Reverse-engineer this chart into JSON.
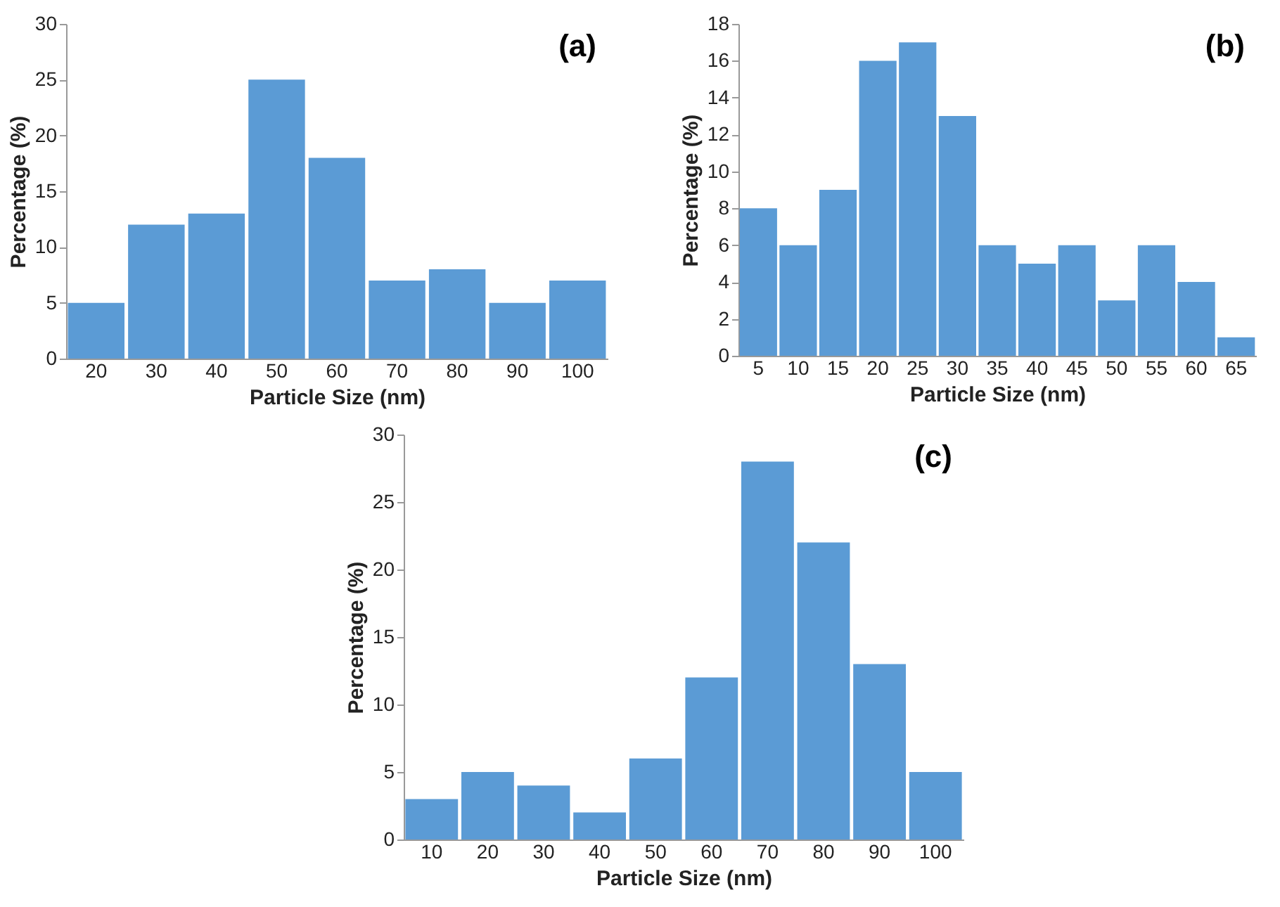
{
  "chart_data": [
    {
      "type": "bar",
      "categories": [
        "20",
        "30",
        "40",
        "50",
        "60",
        "70",
        "80",
        "90",
        "100"
      ],
      "values": [
        5,
        12,
        13,
        25,
        18,
        7,
        8,
        5,
        7
      ],
      "color": "#5b9bd5",
      "xlabel": "Particle Size (nm)",
      "ylabel": "Percentage (%)",
      "ylim": [
        0,
        30
      ],
      "yticks": [
        0,
        5,
        10,
        15,
        20,
        25,
        30
      ],
      "annotations": [
        "(a)"
      ]
    },
    {
      "type": "bar",
      "categories": [
        "5",
        "10",
        "15",
        "20",
        "25",
        "30",
        "35",
        "40",
        "45",
        "50",
        "55",
        "60",
        "65"
      ],
      "values": [
        8,
        6,
        9,
        16,
        17,
        13,
        6,
        5,
        6,
        3,
        6,
        4,
        1
      ],
      "color": "#5b9bd5",
      "xlabel": "Particle Size (nm)",
      "ylabel": "Percentage (%)",
      "ylim": [
        0,
        18
      ],
      "yticks": [
        0,
        2,
        4,
        6,
        8,
        10,
        12,
        14,
        16,
        18
      ],
      "annotations": [
        "(b)"
      ]
    },
    {
      "type": "bar",
      "categories": [
        "10",
        "20",
        "30",
        "40",
        "50",
        "60",
        "70",
        "80",
        "90",
        "100"
      ],
      "values": [
        3,
        5,
        4,
        2,
        6,
        12,
        28,
        22,
        13,
        5
      ],
      "color": "#5b9bd5",
      "xlabel": "Particle Size (nm)",
      "ylabel": "Percentage (%)",
      "ylim": [
        0,
        30
      ],
      "yticks": [
        0,
        5,
        10,
        15,
        20,
        25,
        30
      ],
      "annotations": [
        "(c)"
      ]
    }
  ]
}
